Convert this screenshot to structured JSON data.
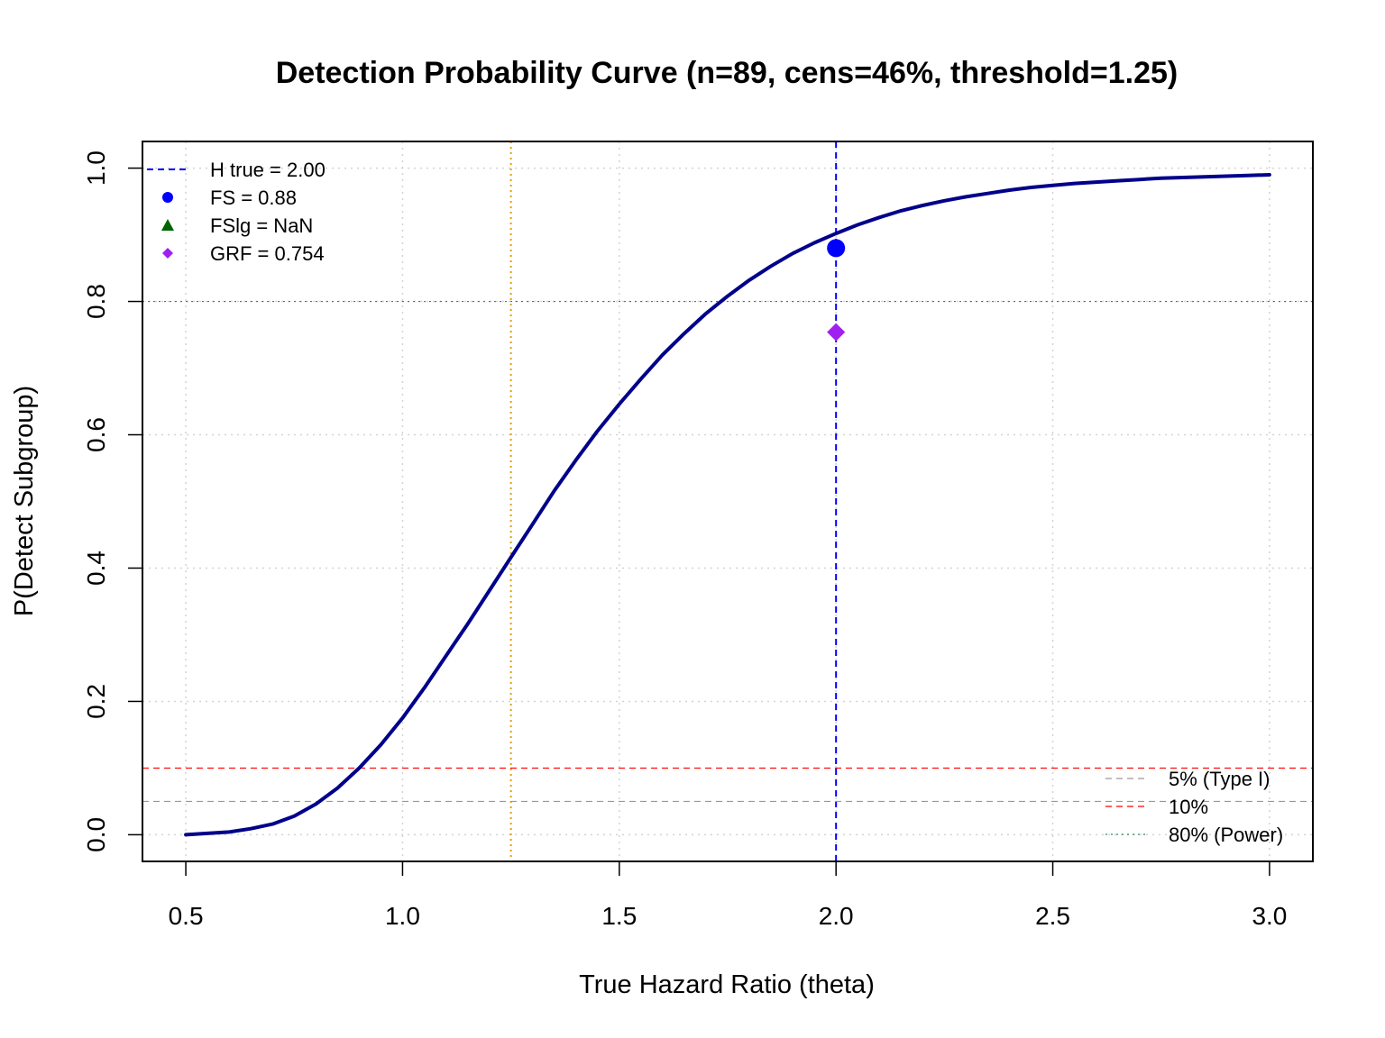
{
  "chart_data": {
    "type": "line",
    "title": "Detection Probability Curve (n=89, cens=46%, threshold=1.25)",
    "xlabel": "True Hazard Ratio (theta)",
    "ylabel": "P(Detect Subgroup)",
    "xlim": [
      0.4,
      3.1
    ],
    "ylim": [
      -0.04,
      1.04
    ],
    "x_ticks": [
      0.5,
      1.0,
      1.5,
      2.0,
      2.5,
      3.0
    ],
    "x_tick_labels": [
      "0.5",
      "1.0",
      "1.5",
      "2.0",
      "2.5",
      "3.0"
    ],
    "y_ticks": [
      0.0,
      0.2,
      0.4,
      0.6,
      0.8,
      1.0
    ],
    "y_tick_labels": [
      "0.0",
      "0.2",
      "0.4",
      "0.6",
      "0.8",
      "1.0"
    ],
    "grid": true,
    "series": [
      {
        "color": "#00008B",
        "x": [
          0.5,
          0.55,
          0.6,
          0.65,
          0.7,
          0.75,
          0.8,
          0.85,
          0.9,
          0.95,
          1.0,
          1.05,
          1.1,
          1.15,
          1.2,
          1.25,
          1.3,
          1.35,
          1.4,
          1.45,
          1.5,
          1.55,
          1.6,
          1.65,
          1.7,
          1.75,
          1.8,
          1.85,
          1.9,
          1.95,
          2.0,
          2.05,
          2.1,
          2.15,
          2.2,
          2.25,
          2.3,
          2.35,
          2.4,
          2.45,
          2.5,
          2.55,
          2.6,
          2.65,
          2.7,
          2.75,
          2.8,
          2.85,
          2.9,
          2.95,
          3.0
        ],
        "y": [
          0.0,
          0.002,
          0.004,
          0.009,
          0.016,
          0.028,
          0.046,
          0.07,
          0.1,
          0.135,
          0.175,
          0.22,
          0.268,
          0.316,
          0.366,
          0.416,
          0.466,
          0.516,
          0.562,
          0.606,
          0.646,
          0.684,
          0.72,
          0.752,
          0.782,
          0.808,
          0.832,
          0.853,
          0.872,
          0.888,
          0.902,
          0.915,
          0.926,
          0.936,
          0.944,
          0.951,
          0.957,
          0.962,
          0.967,
          0.971,
          0.974,
          0.977,
          0.979,
          0.981,
          0.983,
          0.985,
          0.986,
          0.987,
          0.988,
          0.989,
          0.99
        ]
      }
    ],
    "reference_lines": [
      {
        "orientation": "vertical",
        "value": 1.25,
        "color": "#E69F00",
        "style": "dotted"
      },
      {
        "orientation": "vertical",
        "value": 2.0,
        "color": "#0000FF",
        "style": "dashed"
      },
      {
        "orientation": "horizontal",
        "value": 0.05,
        "color": "#999999",
        "style": "dashed"
      },
      {
        "orientation": "horizontal",
        "value": 0.1,
        "color": "#FF0000",
        "style": "dashed"
      },
      {
        "orientation": "horizontal",
        "value": 0.8,
        "color": "#2E8B57",
        "style": "dotted"
      }
    ],
    "points": [
      {
        "name": "FS",
        "x": 2.0,
        "y": 0.88,
        "color": "#0000FF",
        "shape": "circle"
      },
      {
        "name": "GRF",
        "x": 2.0,
        "y": 0.754,
        "color": "#A020F0",
        "shape": "diamond"
      }
    ],
    "legend_topleft": {
      "position": "top-left",
      "entries": [
        {
          "label": "H true = 2.00",
          "symbol": "dashed-line",
          "color": "#0000FF"
        },
        {
          "label": "FS = 0.88",
          "symbol": "circle",
          "color": "#0000FF"
        },
        {
          "label": "FSlg = NaN",
          "symbol": "triangle",
          "color": "#006400"
        },
        {
          "label": "GRF = 0.754",
          "symbol": "diamond",
          "color": "#A020F0"
        }
      ]
    },
    "legend_bottomright": {
      "position": "bottom-right",
      "entries": [
        {
          "label": "5% (Type I)",
          "symbol": "dashed-line",
          "color": "#999999"
        },
        {
          "label": "10%",
          "symbol": "dashed-line",
          "color": "#FF0000"
        },
        {
          "label": "80% (Power)",
          "symbol": "dotted-line",
          "color": "#2E8B57"
        }
      ]
    }
  }
}
